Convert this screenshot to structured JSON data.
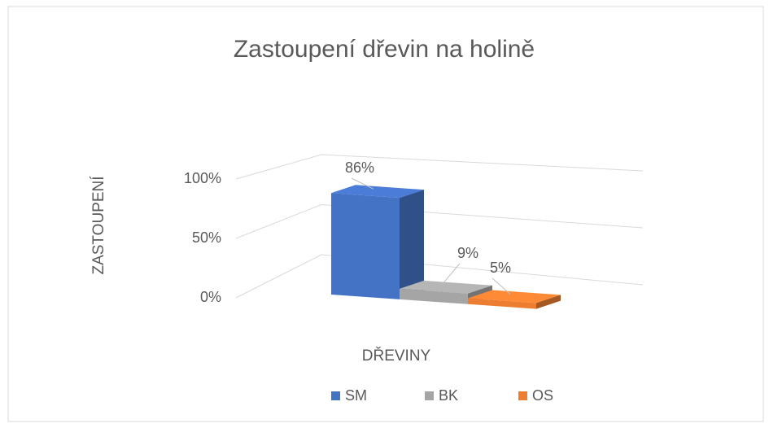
{
  "chart_data": {
    "type": "bar3d",
    "title": "Zastoupení dřevin na holině",
    "x_label": "DŘEVINY",
    "y_label": "ZASTOUPENÍ",
    "categories": [
      null
    ],
    "series": [
      {
        "name": "SM",
        "color": "#4472c4",
        "values": [
          86
        ],
        "value_labels": [
          "86%"
        ]
      },
      {
        "name": "BK",
        "color": "#a5a5a5",
        "values": [
          9
        ],
        "value_labels": [
          "9%"
        ]
      },
      {
        "name": "OS",
        "color": "#ed7d31",
        "values": [
          5
        ],
        "value_labels": [
          "5%"
        ]
      }
    ],
    "ylim": [
      0,
      100
    ],
    "yticks": [
      {
        "value": 0,
        "label": "0%"
      },
      {
        "value": 50,
        "label": "50%"
      },
      {
        "value": 100,
        "label": "100%"
      }
    ],
    "grid": true,
    "legend": "bottom"
  }
}
